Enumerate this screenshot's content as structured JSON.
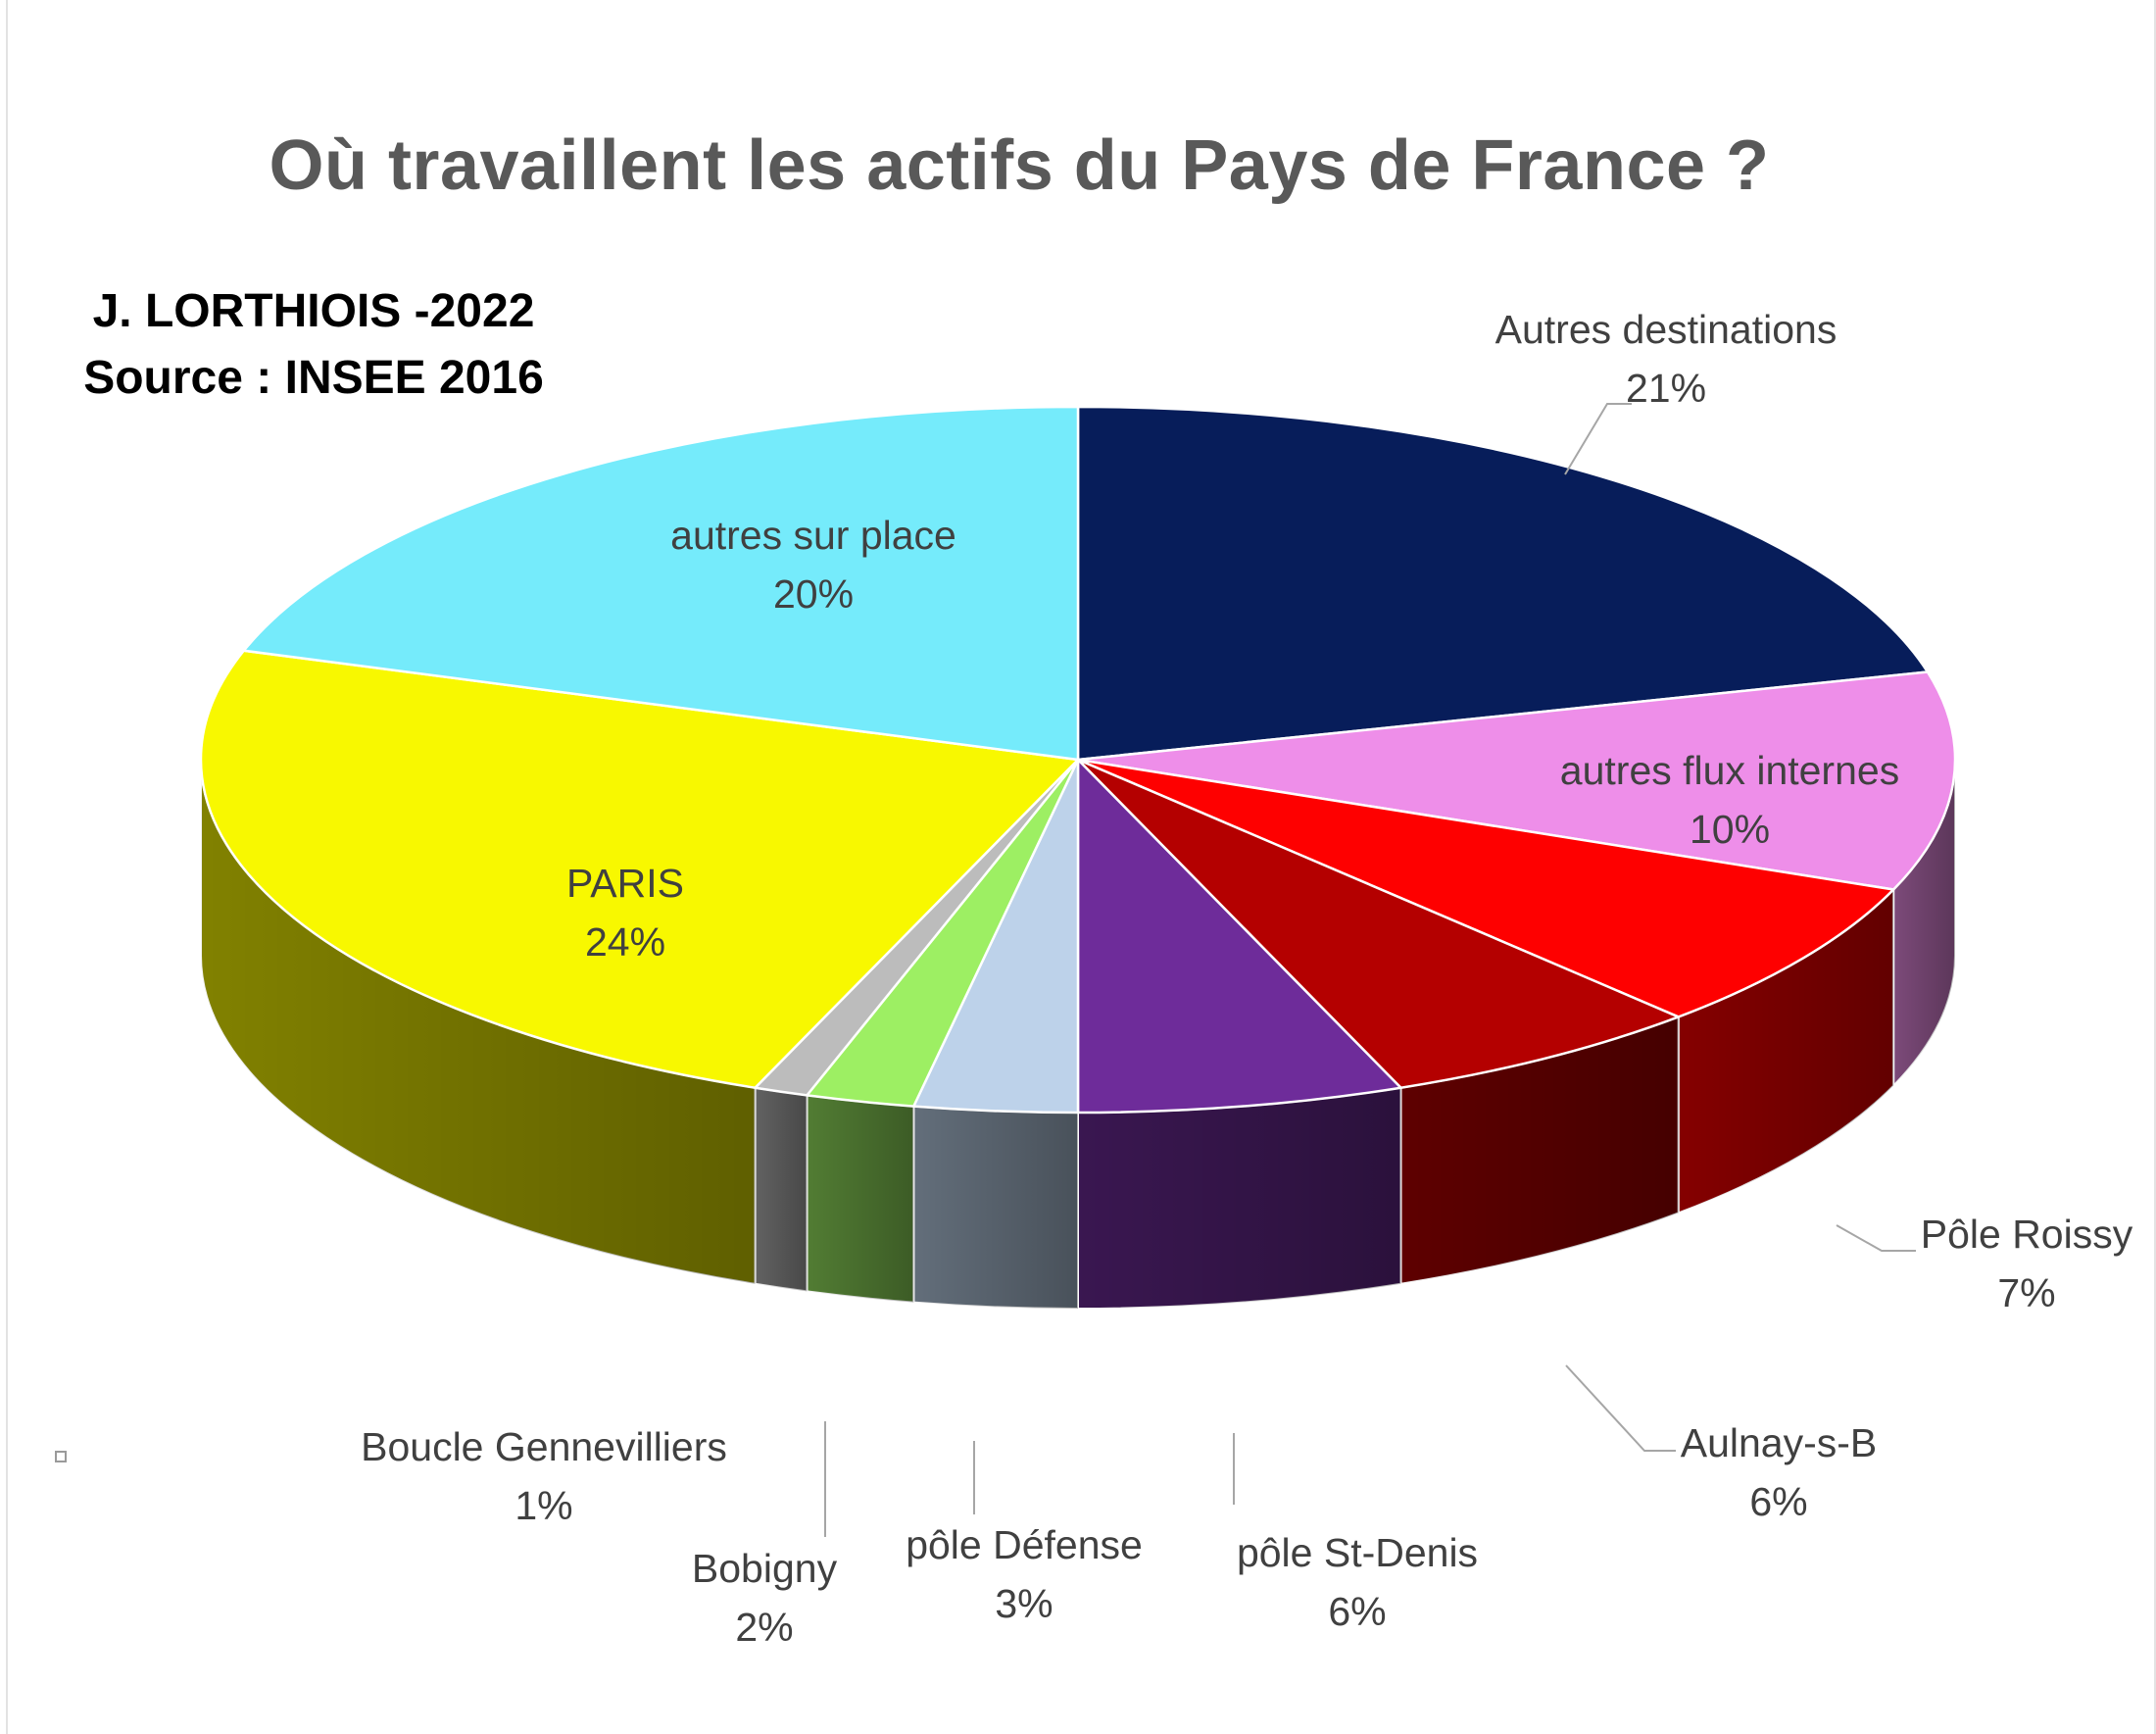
{
  "chart_data": {
    "type": "pie",
    "style": "3d",
    "title": "Où travaillent les actifs du Pays de France ?",
    "annotations": [
      "J. LORTHIOIS -2022",
      "Source : INSEE 2016"
    ],
    "legend": "none",
    "unit": "%",
    "slices": [
      {
        "label": "Autres destinations",
        "value": 21,
        "display": "21%",
        "color": "#071d5a"
      },
      {
        "label": "autres flux internes",
        "value": 10,
        "display": "10%",
        "color": "#ee8ee9"
      },
      {
        "label": "Pôle Roissy",
        "value": 7,
        "display": "7%",
        "color": "#fe0000"
      },
      {
        "label": "Aulnay-s-B",
        "value": 6,
        "display": "6%",
        "color": "#b40000"
      },
      {
        "label": "pôle St-Denis",
        "value": 6,
        "display": "6%",
        "color": "#6e2c9a"
      },
      {
        "label": "pôle Défense",
        "value": 3,
        "display": "3%",
        "color": "#bdd2ea"
      },
      {
        "label": "Bobigny",
        "value": 2,
        "display": "2%",
        "color": "#9def63"
      },
      {
        "label": "Boucle Gennevilliers",
        "value": 1,
        "display": "1%",
        "color": "#bcbcbc"
      },
      {
        "label": "PARIS",
        "value": 24,
        "display": "24%",
        "color": "#f8f800"
      },
      {
        "label": "autres sur place",
        "value": 20,
        "display": "20%",
        "color": "#75ebfb"
      }
    ]
  }
}
